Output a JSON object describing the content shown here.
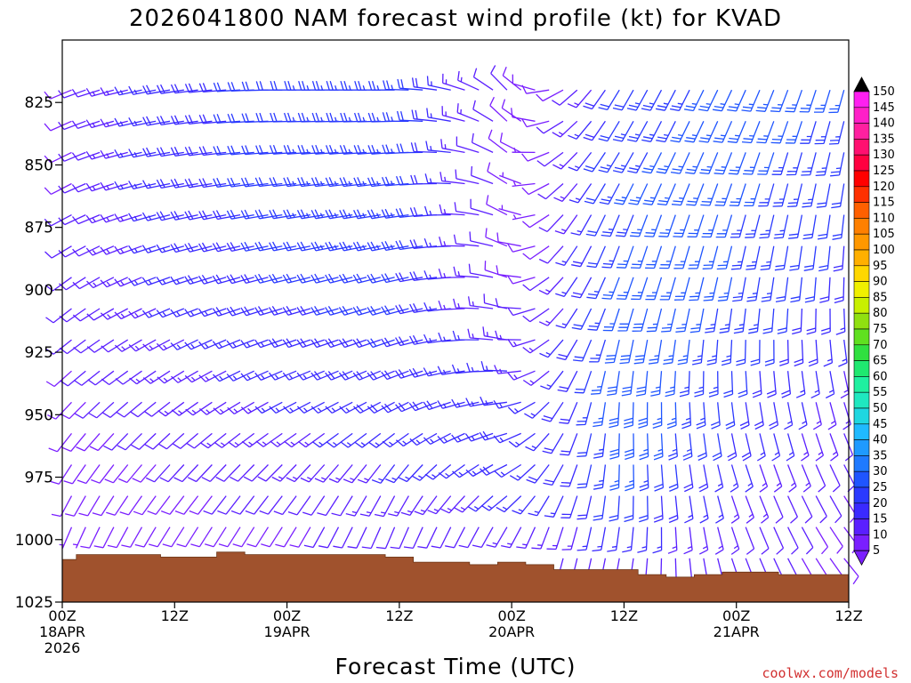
{
  "chart_data": {
    "type": "wind-barb-profile",
    "title": "2026041800 NAM forecast wind profile (kt) for KVAD",
    "xlabel": "Forecast Time (UTC)",
    "credit": "coolwx.com/models",
    "units": "kt",
    "ylim": [
      1025,
      800
    ],
    "yticks": [
      "825",
      "850",
      "875",
      "900",
      "925",
      "950",
      "975",
      "1000",
      "1025"
    ],
    "xlim": [
      0,
      84
    ],
    "xticks": [
      {
        "hour": 0,
        "line1": "00Z",
        "line2": "18APR",
        "line3": "2026"
      },
      {
        "hour": 12,
        "line1": "12Z",
        "line2": "",
        "line3": ""
      },
      {
        "hour": 24,
        "line1": "00Z",
        "line2": "19APR",
        "line3": ""
      },
      {
        "hour": 36,
        "line1": "12Z",
        "line2": "",
        "line3": ""
      },
      {
        "hour": 48,
        "line1": "00Z",
        "line2": "20APR",
        "line3": ""
      },
      {
        "hour": 60,
        "line1": "12Z",
        "line2": "",
        "line3": ""
      },
      {
        "hour": 72,
        "line1": "00Z",
        "line2": "21APR",
        "line3": ""
      },
      {
        "hour": 84,
        "line1": "12Z",
        "line2": "",
        "line3": ""
      }
    ],
    "surface_pressure": {
      "hours": [
        0,
        3,
        6,
        9,
        12,
        15,
        18,
        21,
        24,
        27,
        30,
        33,
        36,
        39,
        42,
        45,
        48,
        51,
        54,
        57,
        60,
        63,
        66,
        69,
        72,
        75,
        78,
        81,
        84
      ],
      "values": [
        1008,
        1006,
        1006,
        1006,
        1007,
        1007,
        1005,
        1006,
        1006,
        1006,
        1006,
        1006,
        1007,
        1009,
        1009,
        1010,
        1009,
        1010,
        1012,
        1012,
        1012,
        1014,
        1015,
        1014,
        1013,
        1013,
        1014,
        1014,
        1014
      ],
      "color": "#a0522d"
    },
    "colorbar": {
      "levels": [
        "5",
        "10",
        "15",
        "20",
        "25",
        "30",
        "35",
        "40",
        "45",
        "50",
        "55",
        "60",
        "65",
        "70",
        "75",
        "80",
        "85",
        "90",
        "95",
        "100",
        "105",
        "110",
        "115",
        "120",
        "125",
        "130",
        "135",
        "140",
        "145",
        "150"
      ],
      "colors": [
        "#7a1fff",
        "#5a1fff",
        "#3a2aff",
        "#2a3aff",
        "#1f55ff",
        "#1f7aff",
        "#1f9aff",
        "#1fbaff",
        "#1fd7e0",
        "#1fe8c0",
        "#1ff0a0",
        "#1fe870",
        "#30e040",
        "#60e020",
        "#90e010",
        "#c8f000",
        "#f0f000",
        "#ffd700",
        "#ffb000",
        "#ff9800",
        "#ff8000",
        "#ff6000",
        "#ff3000",
        "#ff0000",
        "#ff0040",
        "#ff1070",
        "#ff20a0",
        "#ff20c8",
        "#ff20f0",
        "#000000"
      ]
    },
    "wind": {
      "pressure_levels": [
        1000,
        975,
        950,
        925,
        900,
        875,
        850,
        825
      ],
      "hours": [
        0,
        12,
        24,
        36,
        48,
        60,
        72,
        84
      ],
      "direction_deg": [
        [
          200,
          210,
          210,
          200,
          200,
          190,
          160,
          140
        ],
        [
          210,
          220,
          220,
          210,
          240,
          180,
          160,
          150
        ],
        [
          220,
          230,
          240,
          240,
          260,
          180,
          170,
          160
        ],
        [
          230,
          240,
          250,
          250,
          280,
          190,
          180,
          170
        ],
        [
          230,
          250,
          255,
          255,
          290,
          200,
          190,
          180
        ],
        [
          240,
          255,
          260,
          260,
          300,
          200,
          195,
          185
        ],
        [
          240,
          260,
          265,
          265,
          310,
          210,
          200,
          190
        ],
        [
          245,
          260,
          270,
          270,
          320,
          210,
          205,
          195
        ]
      ],
      "speed_kt": [
        [
          7,
          8,
          9,
          10,
          12,
          15,
          12,
          8
        ],
        [
          8,
          10,
          12,
          15,
          18,
          25,
          15,
          10
        ],
        [
          9,
          12,
          15,
          18,
          18,
          30,
          20,
          12
        ],
        [
          10,
          14,
          17,
          20,
          15,
          30,
          22,
          15
        ],
        [
          10,
          16,
          20,
          22,
          10,
          28,
          25,
          18
        ],
        [
          10,
          17,
          22,
          25,
          8,
          25,
          25,
          20
        ],
        [
          9,
          18,
          22,
          25,
          8,
          25,
          27,
          22
        ],
        [
          9,
          18,
          22,
          25,
          10,
          22,
          27,
          25
        ]
      ]
    }
  }
}
